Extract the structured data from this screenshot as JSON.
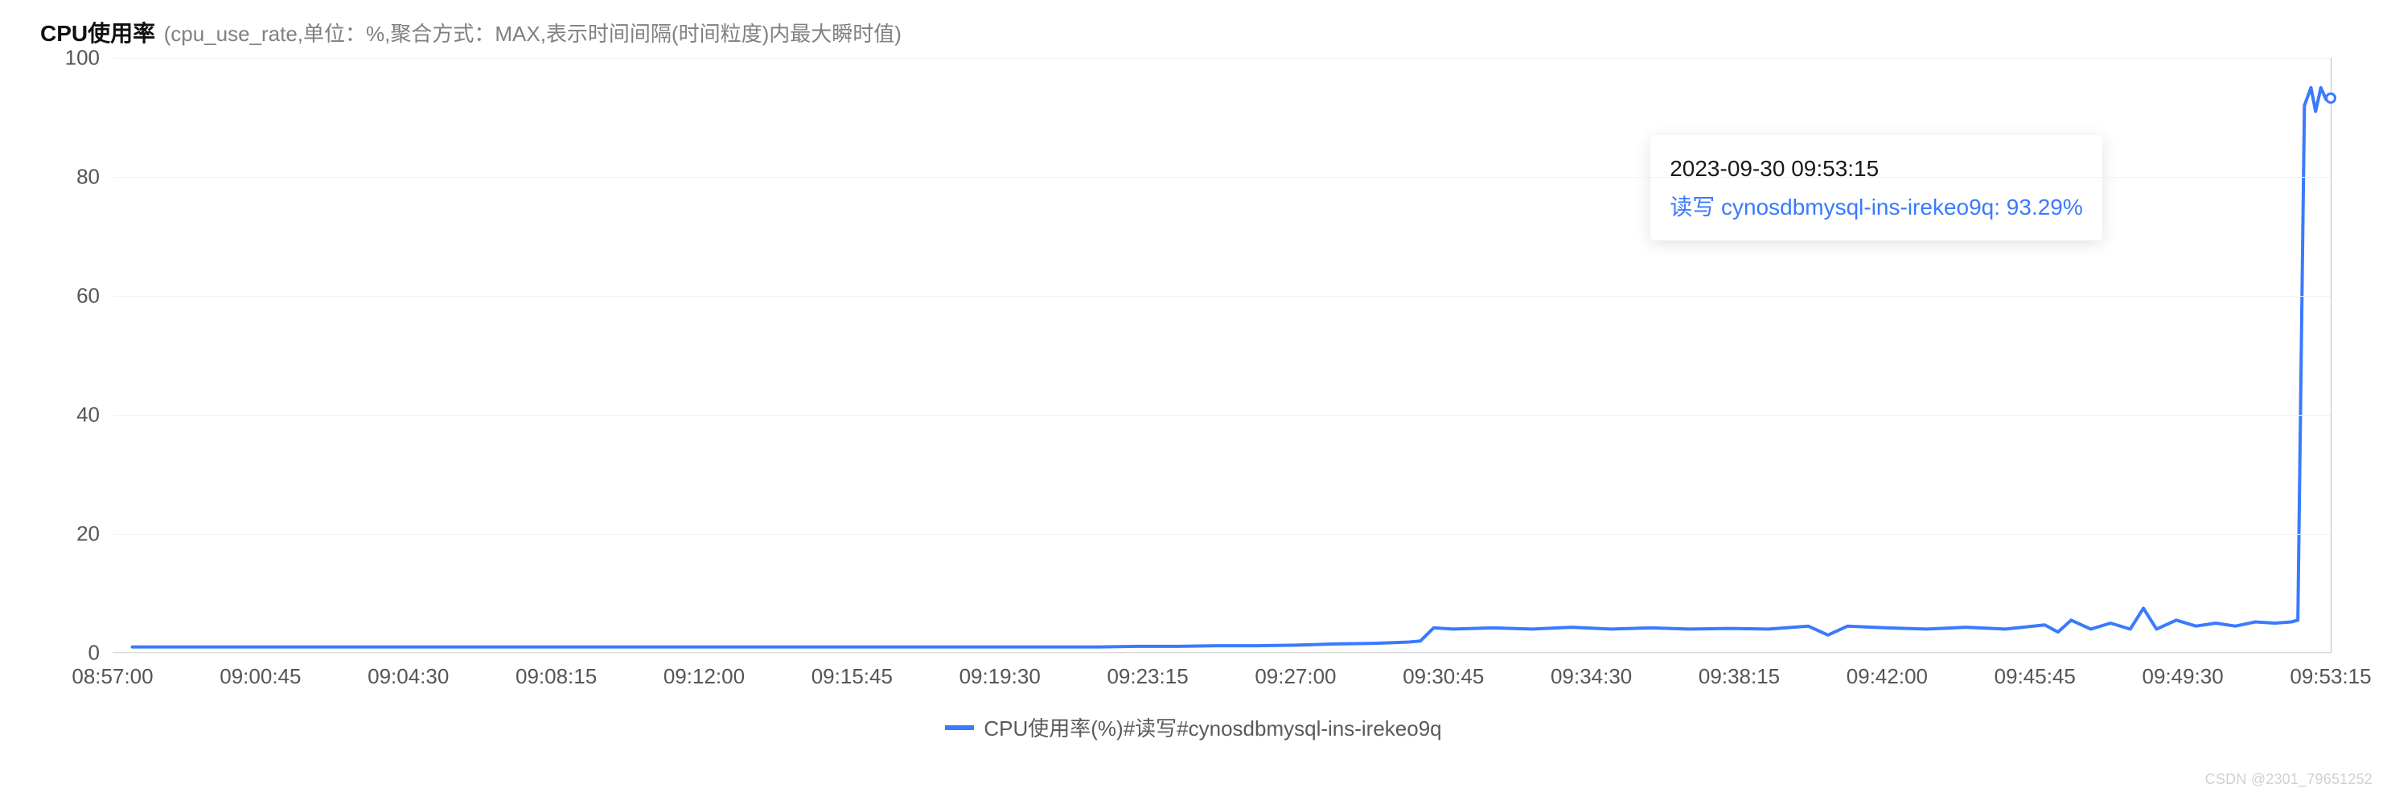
{
  "title": {
    "main": "CPU使用率",
    "sub": "(cpu_use_rate,单位：%,聚合方式：MAX,表示时间间隔(时间粒度)内最大瞬时值)"
  },
  "chart": {
    "type": "line",
    "background_color": "#ffffff",
    "grid_color": "#f2f2f2",
    "axis_color": "#d9d9d9",
    "text_color": "#555555",
    "label_fontsize": 26,
    "title_fontsize": 28,
    "ylim": [
      0,
      100
    ],
    "ytick_step": 20,
    "yticks": [
      0,
      20,
      40,
      60,
      80,
      100
    ],
    "x_domain_sec": [
      0,
      3375
    ],
    "xticks": [
      {
        "sec": 0,
        "label": "08:57:00"
      },
      {
        "sec": 225,
        "label": "09:00:45"
      },
      {
        "sec": 450,
        "label": "09:04:30"
      },
      {
        "sec": 675,
        "label": "09:08:15"
      },
      {
        "sec": 900,
        "label": "09:12:00"
      },
      {
        "sec": 1125,
        "label": "09:15:45"
      },
      {
        "sec": 1350,
        "label": "09:19:30"
      },
      {
        "sec": 1575,
        "label": "09:23:15"
      },
      {
        "sec": 1800,
        "label": "09:27:00"
      },
      {
        "sec": 2025,
        "label": "09:30:45"
      },
      {
        "sec": 2250,
        "label": "09:34:30"
      },
      {
        "sec": 2475,
        "label": "09:38:15"
      },
      {
        "sec": 2700,
        "label": "09:42:00"
      },
      {
        "sec": 2925,
        "label": "09:45:45"
      },
      {
        "sec": 3150,
        "label": "09:49:30"
      },
      {
        "sec": 3375,
        "label": "09:53:15"
      }
    ],
    "series": {
      "name": "CPU使用率(%)#读写#cynosdbmysql-ins-irekeo9q",
      "color": "#3a7afe",
      "line_width": 4,
      "fill_opacity": 0,
      "points_xsec_y": [
        [
          30,
          1.0
        ],
        [
          60,
          1.0
        ],
        [
          120,
          1.0
        ],
        [
          180,
          1.0
        ],
        [
          240,
          1.0
        ],
        [
          300,
          1.0
        ],
        [
          360,
          1.0
        ],
        [
          420,
          1.0
        ],
        [
          480,
          1.0
        ],
        [
          540,
          1.0
        ],
        [
          600,
          1.0
        ],
        [
          660,
          1.0
        ],
        [
          720,
          1.0
        ],
        [
          780,
          1.0
        ],
        [
          840,
          1.0
        ],
        [
          900,
          1.0
        ],
        [
          960,
          1.0
        ],
        [
          1020,
          1.0
        ],
        [
          1080,
          1.0
        ],
        [
          1140,
          1.0
        ],
        [
          1200,
          1.0
        ],
        [
          1260,
          1.0
        ],
        [
          1320,
          1.0
        ],
        [
          1380,
          1.0
        ],
        [
          1440,
          1.0
        ],
        [
          1500,
          1.0
        ],
        [
          1560,
          1.1
        ],
        [
          1620,
          1.1
        ],
        [
          1680,
          1.2
        ],
        [
          1740,
          1.2
        ],
        [
          1800,
          1.3
        ],
        [
          1860,
          1.5
        ],
        [
          1920,
          1.6
        ],
        [
          1970,
          1.8
        ],
        [
          1990,
          2.0
        ],
        [
          2010,
          4.2
        ],
        [
          2040,
          4.0
        ],
        [
          2100,
          4.2
        ],
        [
          2160,
          4.0
        ],
        [
          2220,
          4.3
        ],
        [
          2280,
          4.0
        ],
        [
          2340,
          4.2
        ],
        [
          2400,
          4.0
        ],
        [
          2460,
          4.1
        ],
        [
          2520,
          4.0
        ],
        [
          2580,
          4.5
        ],
        [
          2610,
          3.0
        ],
        [
          2640,
          4.5
        ],
        [
          2700,
          4.2
        ],
        [
          2760,
          4.0
        ],
        [
          2820,
          4.3
        ],
        [
          2880,
          4.0
        ],
        [
          2940,
          4.7
        ],
        [
          2960,
          3.5
        ],
        [
          2980,
          5.5
        ],
        [
          3010,
          4.0
        ],
        [
          3040,
          5.0
        ],
        [
          3070,
          4.0
        ],
        [
          3090,
          7.5
        ],
        [
          3110,
          4.0
        ],
        [
          3140,
          5.5
        ],
        [
          3170,
          4.5
        ],
        [
          3200,
          5.0
        ],
        [
          3230,
          4.5
        ],
        [
          3260,
          5.2
        ],
        [
          3290,
          5.0
        ],
        [
          3315,
          5.2
        ],
        [
          3325,
          5.5
        ],
        [
          3335,
          92.0
        ],
        [
          3345,
          95.0
        ],
        [
          3352,
          91.0
        ],
        [
          3360,
          95.0
        ],
        [
          3368,
          93.0
        ],
        [
          3375,
          93.29
        ]
      ]
    },
    "hover": {
      "x_sec": 3375,
      "y": 93.29,
      "marker_color": "#3a7afe",
      "line_color": "#bbbbbb",
      "tooltip": {
        "time": "2023-09-30 09:53:15",
        "value_text": "读写 cynosdbmysql-ins-irekeo9q: 93.29%",
        "value_color": "#3a7afe",
        "pos_x_sec": 2340,
        "pos_top_pct": 13
      }
    }
  },
  "legend": {
    "swatch_color": "#3a7afe",
    "label": "CPU使用率(%)#读写#cynosdbmysql-ins-irekeo9q"
  },
  "watermark": "CSDN @2301_79651252"
}
